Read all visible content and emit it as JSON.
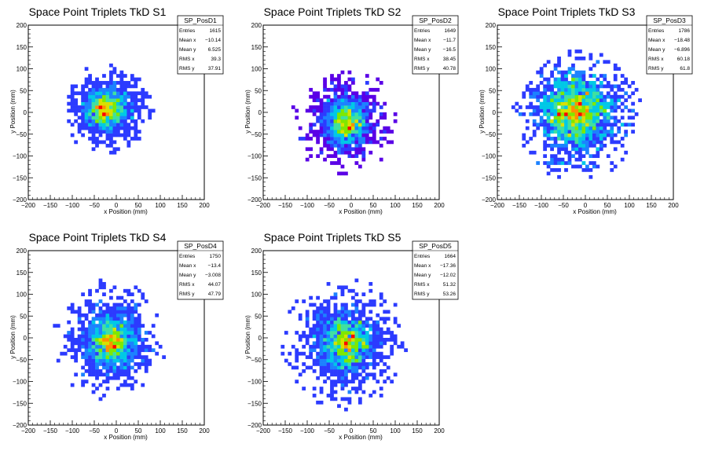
{
  "chart_data": [
    {
      "type": "heatmap",
      "title": "Space Point Triplets TkD S1",
      "xlabel": "x Position (mm)",
      "ylabel": "y Position (mm)",
      "xlim": [
        -200,
        200
      ],
      "ylim": [
        -200,
        200
      ],
      "xticks": [
        "−200",
        "−150",
        "−100",
        "−50",
        "0",
        "50",
        "100",
        "150",
        "200"
      ],
      "yticks": [
        "200",
        "150",
        "100",
        "50",
        "0",
        "−50",
        "−100",
        "−150",
        "−200"
      ],
      "stats": {
        "name": "SP_PosD1",
        "rows": [
          {
            "label": "Entries",
            "value": "1615"
          },
          {
            "label": "Mean x",
            "value": "−10.14"
          },
          {
            "label": "Mean y",
            "value": "6.525"
          },
          {
            "label": "RMS x",
            "value": "39.3"
          },
          {
            "label": "RMS y",
            "value": "37.91"
          }
        ]
      },
      "entries": 1615,
      "mean": [
        -10.14,
        6.525
      ],
      "rms": [
        39.3,
        37.91
      ],
      "peak": [
        -25,
        10
      ],
      "extent": 110
    },
    {
      "type": "heatmap",
      "title": "Space Point Triplets TkD S2",
      "xlabel": "x Position (mm)",
      "ylabel": "y Position (mm)",
      "xlim": [
        -200,
        200
      ],
      "ylim": [
        -200,
        200
      ],
      "xticks": [
        "−200",
        "−150",
        "−100",
        "−50",
        "0",
        "50",
        "100",
        "150",
        "200"
      ],
      "yticks": [
        "200",
        "150",
        "100",
        "50",
        "0",
        "−50",
        "−100",
        "−150",
        "−200"
      ],
      "stats": {
        "name": "SP_PosD2",
        "rows": [
          {
            "label": "Entries",
            "value": "1649"
          },
          {
            "label": "Mean x",
            "value": "−11.7"
          },
          {
            "label": "Mean y",
            "value": "−16.5"
          },
          {
            "label": "RMS x",
            "value": "38.45"
          },
          {
            "label": "RMS y",
            "value": "40.78"
          }
        ]
      },
      "entries": 1649,
      "mean": [
        -11.7,
        -16.5
      ],
      "rms": [
        38.45,
        40.78
      ],
      "peak": [
        -10,
        -25
      ],
      "extent": 130
    },
    {
      "type": "heatmap",
      "title": "Space Point Triplets TkD S3",
      "xlabel": "x Position (mm)",
      "ylabel": "y Position (mm)",
      "xlim": [
        -200,
        200
      ],
      "ylim": [
        -200,
        200
      ],
      "xticks": [
        "−200",
        "−150",
        "−100",
        "−50",
        "0",
        "50",
        "100",
        "150",
        "200"
      ],
      "yticks": [
        "200",
        "150",
        "100",
        "50",
        "0",
        "−50",
        "−100",
        "−150",
        "−200"
      ],
      "stats": {
        "name": "SP_PosD3",
        "rows": [
          {
            "label": "Entries",
            "value": "1786"
          },
          {
            "label": "Mean x",
            "value": "−18.48"
          },
          {
            "label": "Mean y",
            "value": "−6.896"
          },
          {
            "label": "RMS x",
            "value": "60.18"
          },
          {
            "label": "RMS y",
            "value": "61.8"
          }
        ]
      },
      "entries": 1786,
      "mean": [
        -18.48,
        -6.896
      ],
      "rms": [
        60.18,
        61.8
      ],
      "peak": [
        -20,
        5
      ],
      "extent": 150
    },
    {
      "type": "heatmap",
      "title": "Space Point Triplets TkD S4",
      "xlabel": "x Position (mm)",
      "ylabel": "y Position (mm)",
      "xlim": [
        -200,
        200
      ],
      "ylim": [
        -200,
        200
      ],
      "xticks": [
        "−200",
        "−150",
        "−100",
        "−50",
        "0",
        "50",
        "100",
        "150",
        "200"
      ],
      "yticks": [
        "200",
        "150",
        "100",
        "50",
        "0",
        "−50",
        "−100",
        "−150",
        "−200"
      ],
      "stats": {
        "name": "SP_PosD4",
        "rows": [
          {
            "label": "Entries",
            "value": "1750"
          },
          {
            "label": "Mean x",
            "value": "−13.4"
          },
          {
            "label": "Mean y",
            "value": "−3.008"
          },
          {
            "label": "RMS x",
            "value": "44.07"
          },
          {
            "label": "RMS y",
            "value": "47.79"
          }
        ]
      },
      "entries": 1750,
      "mean": [
        -13.4,
        -3.008
      ],
      "rms": [
        44.07,
        47.79
      ],
      "peak": [
        -10,
        -10
      ],
      "extent": 140
    },
    {
      "type": "heatmap",
      "title": "Space Point Triplets TkD S5",
      "xlabel": "x Position (mm)",
      "ylabel": "y Position (mm)",
      "xlim": [
        -200,
        200
      ],
      "ylim": [
        -200,
        200
      ],
      "xticks": [
        "−200",
        "−150",
        "−100",
        "−50",
        "0",
        "50",
        "100",
        "150",
        "200"
      ],
      "yticks": [
        "200",
        "150",
        "100",
        "50",
        "0",
        "−50",
        "−100",
        "−150",
        "−200"
      ],
      "stats": {
        "name": "SP_PosD5",
        "rows": [
          {
            "label": "Entries",
            "value": "1664"
          },
          {
            "label": "Mean x",
            "value": "−17.36"
          },
          {
            "label": "Mean y",
            "value": "−12.02"
          },
          {
            "label": "RMS x",
            "value": "51.32"
          },
          {
            "label": "RMS y",
            "value": "53.26"
          }
        ]
      },
      "entries": 1664,
      "mean": [
        -17.36,
        -12.02
      ],
      "rms": [
        51.32,
        53.26
      ],
      "peak": [
        -10,
        -10
      ],
      "extent": 150
    }
  ],
  "colors": {
    "palette": [
      "#5a00e6",
      "#2c3bff",
      "#1c82ff",
      "#00c8e6",
      "#40e0a0",
      "#7ee800",
      "#d8e000",
      "#ff9000",
      "#ff0000"
    ],
    "axis": "#000000",
    "frame": "#000000",
    "background": "#ffffff"
  }
}
